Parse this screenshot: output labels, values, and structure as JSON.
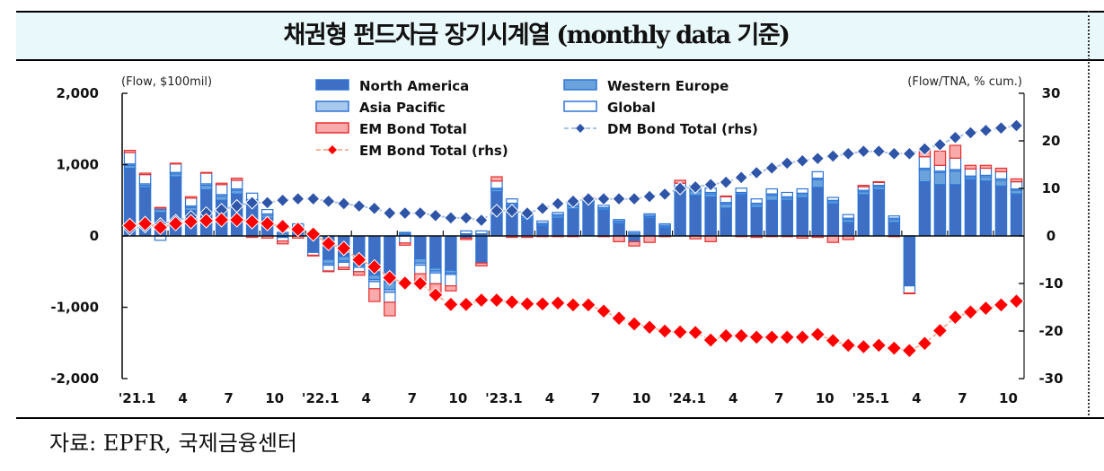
{
  "header": {
    "title": "채권형 펀드자금 장기시계열 (monthly data 기준)"
  },
  "footer": {
    "source": "자료: EPFR,  국제금융센터"
  },
  "chart_data": {
    "type": "bar",
    "title": "채권형 펀드자금 장기시계열 (monthly data 기준)",
    "ylabel": "(Flow, $100mil)",
    "y2label": "(Flow/TNA, % cum.)",
    "ylim": [
      -2000,
      2000
    ],
    "y2lim": [
      -30,
      30
    ],
    "yticks": [
      "2,000",
      "1,000",
      "0",
      "-1,000",
      "-2,000"
    ],
    "ytick_values": [
      2000,
      1000,
      0,
      -1000,
      -2000
    ],
    "y2ticks": [
      "30",
      "20",
      "10",
      "0",
      "-10",
      "-20",
      "-30"
    ],
    "y2tick_values": [
      30,
      20,
      10,
      0,
      -10,
      -20,
      -30
    ],
    "xtick_labels": [
      {
        "index": 0,
        "label": "'21.1"
      },
      {
        "index": 3,
        "label": "4"
      },
      {
        "index": 6,
        "label": "7"
      },
      {
        "index": 9,
        "label": "10"
      },
      {
        "index": 12,
        "label": "'22.1"
      },
      {
        "index": 15,
        "label": "4"
      },
      {
        "index": 18,
        "label": "7"
      },
      {
        "index": 21,
        "label": "10"
      },
      {
        "index": 24,
        "label": "'23.1"
      },
      {
        "index": 27,
        "label": "4"
      },
      {
        "index": 30,
        "label": "7"
      },
      {
        "index": 33,
        "label": "10"
      },
      {
        "index": 36,
        "label": "'24.1"
      },
      {
        "index": 39,
        "label": "4"
      },
      {
        "index": 42,
        "label": "7"
      },
      {
        "index": 45,
        "label": "10"
      },
      {
        "index": 48,
        "label": "'25.1"
      },
      {
        "index": 51,
        "label": "4"
      },
      {
        "index": 54,
        "label": "7"
      },
      {
        "index": 57,
        "label": "10"
      }
    ],
    "categories": [
      "2021-01",
      "2021-02",
      "2021-03",
      "2021-04",
      "2021-05",
      "2021-06",
      "2021-07",
      "2021-08",
      "2021-09",
      "2021-10",
      "2021-11",
      "2021-12",
      "2022-01",
      "2022-02",
      "2022-03",
      "2022-04",
      "2022-05",
      "2022-06",
      "2022-07",
      "2022-08",
      "2022-09",
      "2022-10",
      "2022-11",
      "2022-12",
      "2023-01",
      "2023-02",
      "2023-03",
      "2023-04",
      "2023-05",
      "2023-06",
      "2023-07",
      "2023-08",
      "2023-09",
      "2023-10",
      "2023-11",
      "2023-12",
      "2024-01",
      "2024-02",
      "2024-03",
      "2024-04",
      "2024-05",
      "2024-06",
      "2024-07",
      "2024-08",
      "2024-09",
      "2024-10",
      "2024-11",
      "2024-12",
      "2025-01",
      "2025-02",
      "2025-03",
      "2025-04",
      "2025-05",
      "2025-06",
      "2025-07",
      "2025-08",
      "2025-09",
      "2025-10",
      "2025-11"
    ],
    "legend": [
      {
        "name": "North America",
        "kind": "bar",
        "color": "#3e6fc4",
        "edge": "#2e75d6"
      },
      {
        "name": "Western Europe",
        "kind": "bar",
        "color": "#6aa3dc",
        "edge": "#2e75d6"
      },
      {
        "name": "Asia Pacific",
        "kind": "bar",
        "color": "#a9c9ec",
        "edge": "#2e75d6"
      },
      {
        "name": "Global",
        "kind": "bar",
        "color": "#ffffff",
        "edge": "#2e75d6"
      },
      {
        "name": "EM Bond Total",
        "kind": "bar",
        "color": "#f9aaaa",
        "edge": "#e83030"
      },
      {
        "name": "DM Bond Total (rhs)",
        "kind": "line",
        "color": "#2e55a8",
        "line_color": "#a9c3e8"
      },
      {
        "name": "EM Bond Total (rhs)",
        "kind": "line",
        "color": "#ff0000",
        "line_color": "#f4b59a"
      }
    ],
    "legend_placement": "top-center",
    "series": [
      {
        "name": "North America",
        "axis": "left",
        "values": [
          950,
          680,
          330,
          830,
          360,
          650,
          500,
          590,
          450,
          250,
          -20,
          50,
          -230,
          -330,
          -290,
          -400,
          -550,
          -650,
          20,
          -320,
          -450,
          -480,
          -30,
          -380,
          620,
          420,
          230,
          140,
          250,
          380,
          470,
          360,
          170,
          -80,
          250,
          110,
          620,
          570,
          550,
          390,
          570,
          400,
          500,
          500,
          540,
          680,
          450,
          190,
          580,
          650,
          190,
          -700,
          760,
          720,
          720,
          790,
          770,
          700,
          590
        ]
      },
      {
        "name": "Western Europe",
        "axis": "left",
        "values": [
          40,
          30,
          40,
          40,
          40,
          60,
          60,
          50,
          40,
          40,
          30,
          30,
          30,
          -60,
          -60,
          -20,
          -60,
          -100,
          20,
          -60,
          -40,
          -40,
          20,
          20,
          30,
          20,
          20,
          20,
          30,
          30,
          20,
          20,
          20,
          20,
          20,
          20,
          40,
          60,
          40,
          60,
          20,
          40,
          70,
          30,
          40,
          110,
          30,
          40,
          40,
          40,
          40,
          0,
          170,
          170,
          190,
          30,
          60,
          80,
          50
        ]
      },
      {
        "name": "Asia Pacific",
        "axis": "left",
        "values": [
          20,
          20,
          20,
          20,
          20,
          20,
          20,
          20,
          20,
          20,
          20,
          20,
          10,
          -20,
          -20,
          -20,
          -30,
          -40,
          10,
          -30,
          -30,
          -20,
          10,
          10,
          20,
          20,
          20,
          20,
          20,
          20,
          20,
          20,
          20,
          20,
          20,
          20,
          20,
          20,
          20,
          20,
          20,
          20,
          20,
          20,
          20,
          20,
          20,
          20,
          20,
          20,
          20,
          0,
          20,
          20,
          20,
          20,
          20,
          20,
          20
        ]
      },
      {
        "name": "Global",
        "axis": "left",
        "values": [
          160,
          130,
          -60,
          120,
          110,
          150,
          140,
          120,
          90,
          60,
          -50,
          70,
          -40,
          -80,
          -70,
          -60,
          -100,
          -140,
          -100,
          -120,
          -150,
          -160,
          40,
          40,
          100,
          60,
          40,
          30,
          30,
          30,
          20,
          30,
          20,
          20,
          20,
          20,
          60,
          60,
          60,
          80,
          60,
          60,
          70,
          60,
          60,
          90,
          40,
          50,
          50,
          40,
          30,
          -100,
          160,
          80,
          160,
          100,
          100,
          100,
          100
        ]
      },
      {
        "name": "EM Bond Total",
        "axis": "left",
        "values": [
          30,
          20,
          10,
          10,
          20,
          10,
          20,
          30,
          -20,
          -30,
          -40,
          -30,
          -10,
          -10,
          -30,
          -50,
          -180,
          -190,
          -30,
          -160,
          -150,
          -70,
          -20,
          -40,
          60,
          -20,
          -20,
          -10,
          -10,
          -10,
          10,
          -10,
          -80,
          -60,
          -90,
          -10,
          40,
          -40,
          -80,
          10,
          -10,
          -20,
          -10,
          -10,
          -30,
          -20,
          -90,
          -50,
          20,
          10,
          -10,
          -10,
          120,
          200,
          180,
          50,
          40,
          50,
          40
        ]
      },
      {
        "name": "DM Bond Total (rhs)",
        "axis": "right",
        "type": "line",
        "values": [
          1.5,
          2.0,
          2.5,
          3.2,
          4.0,
          4.8,
          5.5,
          6.3,
          7.0,
          7.0,
          7.5,
          7.8,
          7.8,
          7.3,
          6.8,
          6.3,
          5.8,
          4.8,
          4.8,
          4.8,
          4.3,
          3.8,
          3.8,
          3.3,
          5.3,
          5.3,
          4.8,
          5.8,
          6.8,
          7.3,
          7.8,
          7.8,
          7.8,
          7.8,
          8.3,
          8.8,
          10.0,
          10.3,
          10.8,
          11.3,
          12.3,
          13.3,
          14.3,
          15.3,
          15.8,
          16.3,
          16.8,
          17.3,
          17.8,
          17.8,
          17.3,
          17.3,
          18.3,
          19.2,
          20.7,
          21.7,
          22.2,
          22.7,
          23.2
        ]
      },
      {
        "name": "EM Bond Total (rhs)",
        "axis": "right",
        "type": "line",
        "values": [
          2.2,
          2.6,
          1.8,
          2.6,
          3.0,
          3.2,
          3.4,
          3.4,
          3.0,
          2.6,
          2.0,
          1.4,
          0.4,
          -1.6,
          -2.6,
          -5.0,
          -6.5,
          -8.8,
          -9.9,
          -10.0,
          -12.4,
          -14.4,
          -14.4,
          -13.5,
          -13.5,
          -13.9,
          -14.3,
          -14.3,
          -14.1,
          -14.5,
          -14.5,
          -15.8,
          -17.3,
          -18.5,
          -19.2,
          -20.0,
          -20.2,
          -20.3,
          -21.9,
          -21.0,
          -21.0,
          -21.3,
          -21.3,
          -21.3,
          -21.3,
          -20.7,
          -22.0,
          -23.0,
          -23.3,
          -23.0,
          -23.6,
          -24.1,
          -22.6,
          -19.9,
          -17.1,
          -16.0,
          -15.2,
          -14.5,
          -13.7
        ]
      }
    ]
  },
  "texts": {
    "y_unit": "(Flow, $100mil)",
    "y2_unit": "(Flow/TNA, % cum.)"
  }
}
